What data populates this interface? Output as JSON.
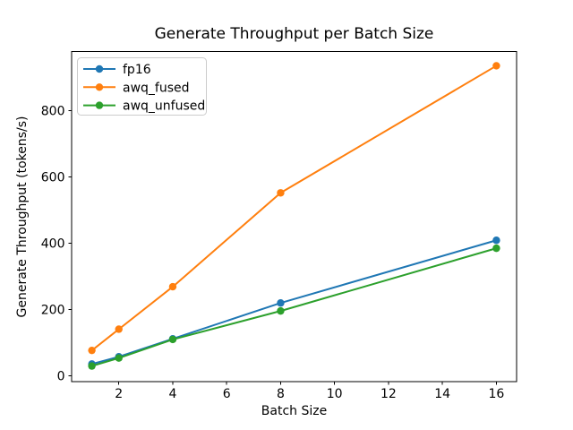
{
  "chart_data": {
    "type": "line",
    "title": "Generate Throughput per Batch Size",
    "xlabel": "Batch Size",
    "ylabel": "Generate Throughput (tokens/s)",
    "x": [
      1,
      2,
      4,
      8,
      16
    ],
    "series": [
      {
        "name": "fp16",
        "color": "#1f77b4",
        "values": [
          36,
          58,
          112,
          220,
          409
        ]
      },
      {
        "name": "awq_fused",
        "color": "#ff7f0e",
        "values": [
          77,
          141,
          269,
          552,
          935
        ]
      },
      {
        "name": "awq_unfused",
        "color": "#2ca02c",
        "values": [
          30,
          54,
          110,
          196,
          385
        ]
      }
    ],
    "xticks": [
      2,
      4,
      6,
      8,
      10,
      12,
      14,
      16
    ],
    "yticks": [
      0,
      200,
      400,
      600,
      800
    ],
    "xlim": [
      0.25,
      16.75
    ],
    "ylim": [
      -17,
      978
    ],
    "grid": false,
    "marker": "o",
    "legend_position": "upper left",
    "legend_border_color": "#cccccc",
    "background_color": "#ffffff",
    "spine_color": "#000000"
  }
}
